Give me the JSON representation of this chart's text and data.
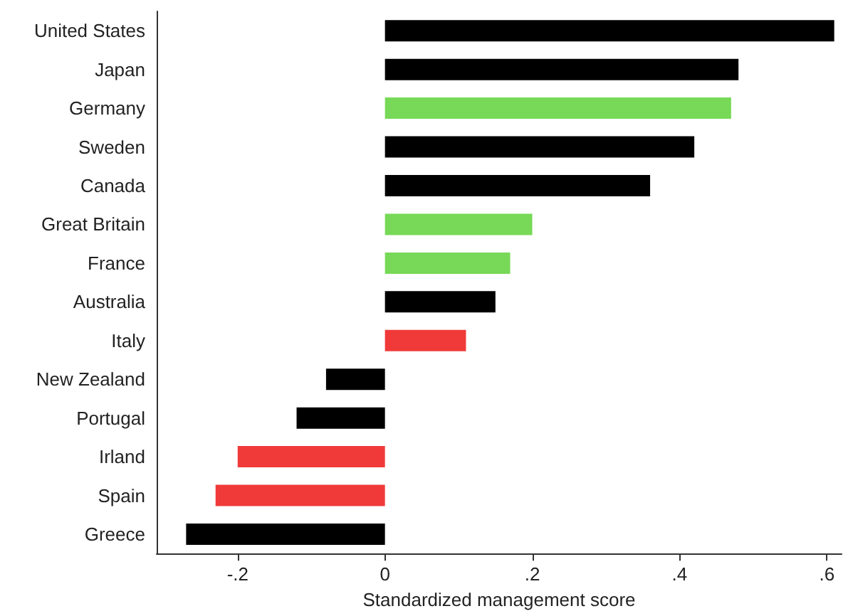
{
  "chart_data": {
    "type": "bar",
    "orientation": "horizontal",
    "xlabel": "Standardized management score",
    "categories": [
      "United States",
      "Japan",
      "Germany",
      "Sweden",
      "Canada",
      "Great Britain",
      "France",
      "Australia",
      "Italy",
      "New Zealand",
      "Portugal",
      "Irland",
      "Spain",
      "Greece"
    ],
    "values": [
      0.61,
      0.48,
      0.47,
      0.42,
      0.36,
      0.2,
      0.17,
      0.15,
      0.11,
      -0.08,
      -0.12,
      -0.2,
      -0.23,
      -0.27
    ],
    "colors": [
      "#000000",
      "#000000",
      "#77d957",
      "#000000",
      "#000000",
      "#77d957",
      "#77d957",
      "#000000",
      "#f03a3a",
      "#000000",
      "#000000",
      "#f03a3a",
      "#f03a3a",
      "#000000"
    ],
    "xlim": [
      -0.31,
      0.62
    ],
    "xticks": [
      {
        "value": -0.2,
        "label": "-.2"
      },
      {
        "value": 0,
        "label": "0"
      },
      {
        "value": 0.2,
        "label": ".2"
      },
      {
        "value": 0.4,
        "label": ".4"
      },
      {
        "value": 0.6,
        "label": ".6"
      }
    ],
    "grid": false
  }
}
